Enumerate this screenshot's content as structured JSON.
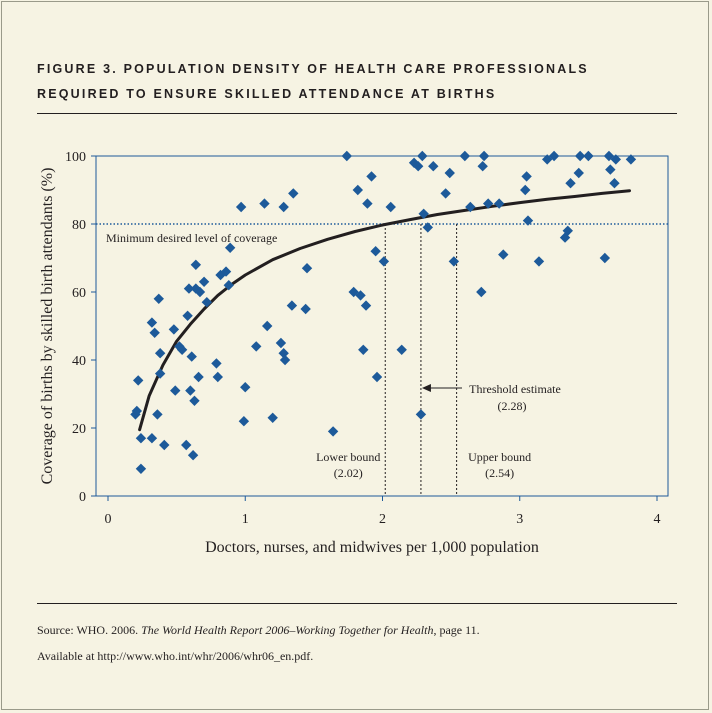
{
  "figure": {
    "title_line1": "FIGURE 3. POPULATION DENSITY OF HEALTH CARE PROFESSIONALS",
    "title_line2": "REQUIRED TO ENSURE SKILLED ATTENDANCE AT BIRTHS"
  },
  "source": {
    "prefix": "Source: WHO. 2006. ",
    "italic": "The World Health Report 2006–Working Together for Health",
    "suffix": ", page 11.",
    "line2": "Available at http://www.who.int/whr/2006/whr06_en.pdf."
  },
  "colors": {
    "background": "#f6f3e3",
    "points": "#1d5a9a",
    "curve": "#231f20",
    "axes": "#1d5a9a",
    "text": "#231f20"
  },
  "chart_data": {
    "type": "scatter",
    "xlabel": "Doctors, nurses, and midwives per 1,000 population",
    "ylabel": "Coverage of births by skilled birth attendants (%)",
    "xlim": [
      0,
      4
    ],
    "ylim": [
      0,
      100
    ],
    "xticks": [
      0,
      1,
      2,
      3,
      4
    ],
    "yticks": [
      0,
      20,
      40,
      60,
      80,
      100
    ],
    "marker": "diamond",
    "grid": false,
    "points": [
      [
        0.2,
        24
      ],
      [
        0.21,
        25
      ],
      [
        0.22,
        34
      ],
      [
        0.24,
        17
      ],
      [
        0.24,
        8
      ],
      [
        0.32,
        51
      ],
      [
        0.32,
        17
      ],
      [
        0.34,
        48
      ],
      [
        0.36,
        24
      ],
      [
        0.37,
        58
      ],
      [
        0.38,
        42
      ],
      [
        0.38,
        36
      ],
      [
        0.41,
        15
      ],
      [
        0.48,
        49
      ],
      [
        0.49,
        31
      ],
      [
        0.52,
        44
      ],
      [
        0.54,
        43
      ],
      [
        0.57,
        15
      ],
      [
        0.58,
        53
      ],
      [
        0.59,
        61
      ],
      [
        0.6,
        31
      ],
      [
        0.61,
        41
      ],
      [
        0.62,
        12
      ],
      [
        0.63,
        28
      ],
      [
        0.64,
        68
      ],
      [
        0.64,
        61
      ],
      [
        0.66,
        35
      ],
      [
        0.67,
        60
      ],
      [
        0.7,
        63
      ],
      [
        0.72,
        57
      ],
      [
        0.79,
        39
      ],
      [
        0.8,
        35
      ],
      [
        0.82,
        65
      ],
      [
        0.86,
        66
      ],
      [
        0.88,
        62
      ],
      [
        0.89,
        73
      ],
      [
        0.97,
        85
      ],
      [
        0.99,
        22
      ],
      [
        1.0,
        32
      ],
      [
        1.08,
        44
      ],
      [
        1.14,
        86
      ],
      [
        1.16,
        50
      ],
      [
        1.2,
        23
      ],
      [
        1.26,
        45
      ],
      [
        1.28,
        85
      ],
      [
        1.28,
        42
      ],
      [
        1.29,
        40
      ],
      [
        1.34,
        56
      ],
      [
        1.35,
        89
      ],
      [
        1.44,
        55
      ],
      [
        1.45,
        67
      ],
      [
        1.64,
        19
      ],
      [
        1.74,
        100
      ],
      [
        1.79,
        60
      ],
      [
        1.82,
        90
      ],
      [
        1.84,
        59
      ],
      [
        1.86,
        43
      ],
      [
        1.88,
        56
      ],
      [
        1.89,
        86
      ],
      [
        1.92,
        94
      ],
      [
        1.95,
        72
      ],
      [
        1.96,
        35
      ],
      [
        2.01,
        69
      ],
      [
        2.06,
        85
      ],
      [
        2.14,
        43
      ],
      [
        2.23,
        98
      ],
      [
        2.26,
        97
      ],
      [
        2.28,
        24
      ],
      [
        2.29,
        100
      ],
      [
        2.3,
        83
      ],
      [
        2.33,
        79
      ],
      [
        2.37,
        97
      ],
      [
        2.46,
        89
      ],
      [
        2.49,
        95
      ],
      [
        2.52,
        69
      ],
      [
        2.6,
        100
      ],
      [
        2.64,
        85
      ],
      [
        2.72,
        60
      ],
      [
        2.73,
        97
      ],
      [
        2.74,
        100
      ],
      [
        2.77,
        86
      ],
      [
        2.85,
        86
      ],
      [
        2.88,
        71
      ],
      [
        3.04,
        90
      ],
      [
        3.05,
        94
      ],
      [
        3.06,
        81
      ],
      [
        3.14,
        69
      ],
      [
        3.2,
        99
      ],
      [
        3.25,
        100
      ],
      [
        3.33,
        76
      ],
      [
        3.35,
        78
      ],
      [
        3.37,
        92
      ],
      [
        3.43,
        95
      ],
      [
        3.44,
        100
      ],
      [
        3.5,
        100
      ],
      [
        3.62,
        70
      ],
      [
        3.65,
        100
      ],
      [
        3.66,
        96
      ],
      [
        3.69,
        92
      ],
      [
        3.7,
        99
      ],
      [
        3.81,
        99
      ]
    ],
    "fitted_curve": {
      "name": "",
      "x": [
        0.23,
        0.3,
        0.4,
        0.5,
        0.6,
        0.7,
        0.8,
        0.9,
        1.0,
        1.2,
        1.4,
        1.6,
        1.8,
        2.0,
        2.2,
        2.4,
        2.6,
        2.8,
        3.0,
        3.2,
        3.4,
        3.6,
        3.8
      ],
      "y": [
        19.5,
        29.5,
        38.5,
        45.5,
        50.5,
        55,
        59,
        62.2,
        65,
        69.5,
        72.8,
        75.5,
        77.8,
        79.7,
        81.3,
        82.8,
        84,
        85.2,
        86.3,
        87.3,
        88.1,
        89,
        89.8
      ]
    },
    "reference_lines": {
      "horizontal": {
        "y": 80,
        "label": "Minimum desired level of coverage"
      },
      "threshold": {
        "x": 2.28,
        "label_line1": "Threshold estimate",
        "label_line2": "(2.28)"
      },
      "lower_bound": {
        "x": 2.02,
        "label_line1": "Lower bound",
        "label_line2": "(2.02)"
      },
      "upper_bound": {
        "x": 2.54,
        "label_line1": "Upper bound",
        "label_line2": "(2.54)"
      }
    }
  }
}
